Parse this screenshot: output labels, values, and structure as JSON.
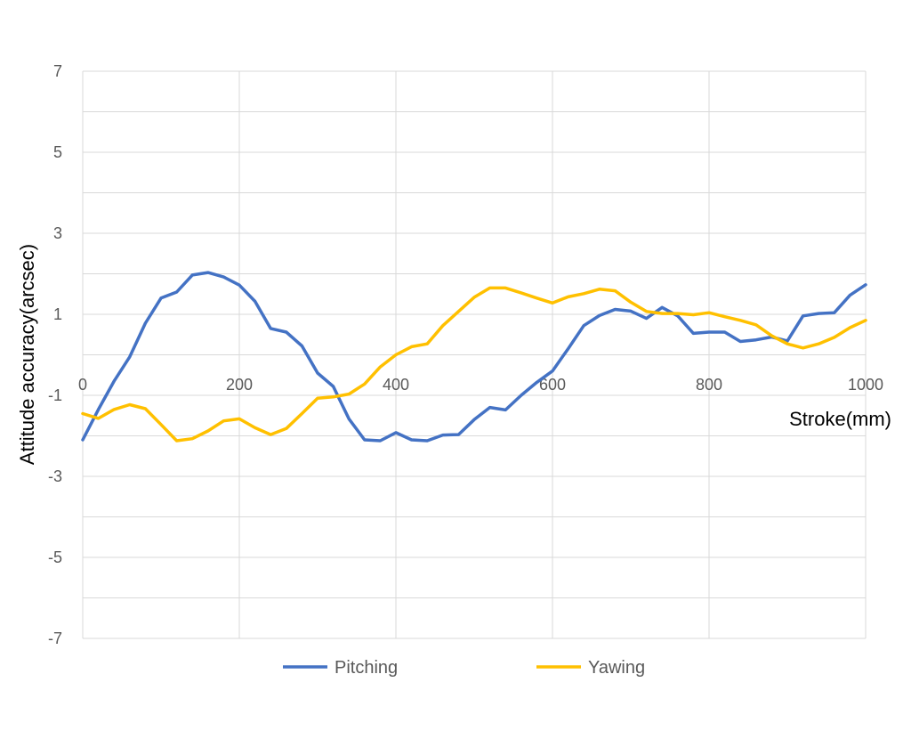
{
  "colors": {
    "grid": "#d9d9d9",
    "axis": "#bfbfbf",
    "background": "#ffffff"
  },
  "chart_data": {
    "type": "line",
    "title": "",
    "xlabel": "Stroke(mm)",
    "ylabel": "Attitude accuracy(arcsec)",
    "xlim": [
      0,
      1000
    ],
    "ylim": [
      -7,
      7
    ],
    "x_ticks": [
      0,
      200,
      400,
      600,
      800,
      1000
    ],
    "y_ticks": [
      7,
      5,
      3,
      1,
      -1,
      -3,
      -5,
      -7
    ],
    "grid": true,
    "legend_position": "bottom",
    "x": [
      0,
      20,
      40,
      60,
      80,
      100,
      120,
      140,
      160,
      180,
      200,
      220,
      240,
      260,
      280,
      300,
      320,
      340,
      360,
      380,
      400,
      420,
      440,
      460,
      480,
      500,
      520,
      540,
      560,
      580,
      600,
      620,
      640,
      660,
      680,
      700,
      720,
      740,
      760,
      780,
      800,
      820,
      840,
      860,
      880,
      900,
      920,
      940,
      960,
      980,
      1000
    ],
    "series": [
      {
        "name": "Pitching",
        "color": "#4472c4",
        "values": [
          -2.1,
          -1.35,
          -0.65,
          -0.05,
          0.78,
          1.4,
          1.55,
          1.97,
          2.03,
          1.92,
          1.72,
          1.32,
          0.65,
          0.56,
          0.22,
          -0.45,
          -0.78,
          -1.58,
          -2.1,
          -2.12,
          -1.92,
          -2.1,
          -2.12,
          -1.98,
          -1.97,
          -1.6,
          -1.3,
          -1.36,
          -1.0,
          -0.68,
          -0.4,
          0.15,
          0.72,
          0.97,
          1.12,
          1.08,
          0.9,
          1.17,
          0.96,
          0.53,
          0.56,
          0.56,
          0.33,
          0.37,
          0.44,
          0.34,
          0.96,
          1.02,
          1.04,
          1.47,
          1.73
        ]
      },
      {
        "name": "Yawing",
        "color": "#ffc000",
        "values": [
          -1.45,
          -1.57,
          -1.35,
          -1.23,
          -1.33,
          -1.72,
          -2.12,
          -2.07,
          -1.88,
          -1.63,
          -1.58,
          -1.8,
          -1.97,
          -1.82,
          -1.45,
          -1.07,
          -1.04,
          -0.97,
          -0.72,
          -0.3,
          0.0,
          0.2,
          0.27,
          0.72,
          1.07,
          1.42,
          1.65,
          1.65,
          1.53,
          1.4,
          1.28,
          1.43,
          1.51,
          1.62,
          1.58,
          1.3,
          1.07,
          1.02,
          1.02,
          0.99,
          1.04,
          0.94,
          0.85,
          0.74,
          0.47,
          0.27,
          0.17,
          0.27,
          0.43,
          0.67,
          0.85
        ]
      }
    ]
  }
}
